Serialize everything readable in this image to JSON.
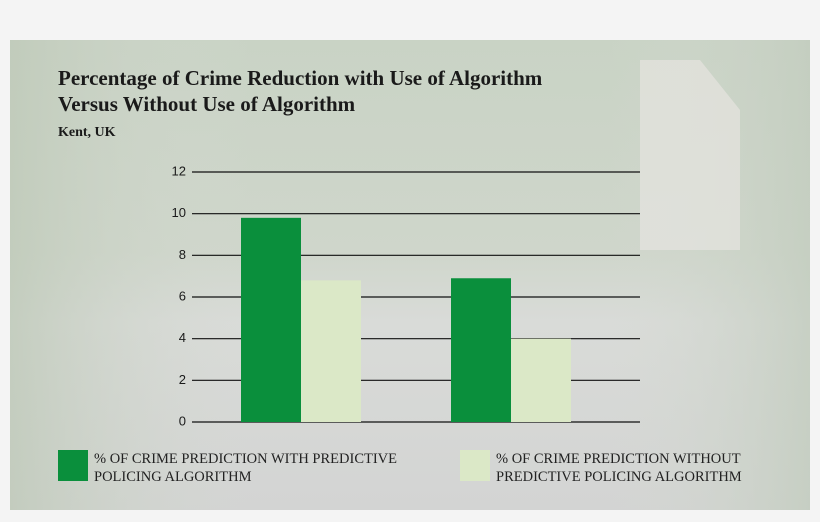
{
  "chart_data": {
    "type": "bar",
    "title": "Percentage of Crime Reduction with Use of Algorithm",
    "title_line2": "Versus Without Use of Algorithm",
    "subtitle": "Kent, UK",
    "categories": [
      null,
      null
    ],
    "series": [
      {
        "name": "% of crime prediction with predictive policing algorithm",
        "color": "#0a8f3c",
        "values": [
          9.8,
          6.9
        ]
      },
      {
        "name": "% of crime prediction without predictive policing algorithm",
        "color": "#dbe8c7",
        "values": [
          6.8,
          4.0
        ]
      }
    ],
    "ylim": [
      0,
      12
    ],
    "yticks": [
      0,
      2,
      4,
      6,
      8,
      10,
      12
    ],
    "grid": true
  }
}
